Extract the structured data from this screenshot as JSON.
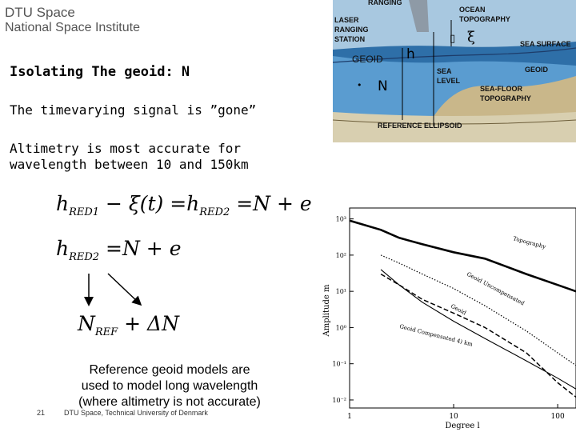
{
  "logo": {
    "line1": "DTU Space",
    "line2": "National Space Institute"
  },
  "slide": {
    "heading": "Isolating The geoid: N",
    "line_gone": "The timevarying signal is ”gone”",
    "line_altimetry_1": "Altimetry is most accurate for",
    "line_altimetry_2": "wavelength between 10 and 150km",
    "eq1": {
      "h1": "h",
      "sub1": "RED1",
      "minus_xi": " − ξ(t) =",
      "h2": "h",
      "sub2": "RED2",
      "rhs": " =N + e"
    },
    "eq2": {
      "h": "h",
      "sub": "RED2",
      "rhs": " =N + e"
    },
    "eq3": {
      "n": "N",
      "sub": "REF",
      "rhs": " + ΔN"
    },
    "reference_text": [
      "Reference geoid models are",
      "used to model long wavelength",
      "(where altimetry is not accurate)"
    ]
  },
  "footer": {
    "page_number": "21",
    "institution": "DTU Space, Technical University of Denmark"
  },
  "diagram": {
    "labels": {
      "ranging": "RANGING",
      "laser": "LASER",
      "ranging2": "RANGING",
      "station": "STATION",
      "ocean": "OCEAN",
      "topography": "TOPOGRAPHY",
      "sea_surface": "SEA SURFACE",
      "geoid_right": "GEOID",
      "geoid_left": "GEOID",
      "h": "h",
      "xi": "ξ",
      "box_char": "▯",
      "dot": "•",
      "n": "N",
      "sea": "SEA",
      "level": "LEVEL",
      "sea_floor": "SEA-FLOOR",
      "topography2": "TOPOGRAPHY",
      "reference_ellipsoid": "REFERENCE ELLIPSOID"
    },
    "colors": {
      "sky": "#a8c8e0",
      "ocean": "#2e6fa8",
      "water": "#5a9cd0",
      "land": "#c9b78a",
      "ellipsoid": "#d8cfb0"
    }
  },
  "chart_data": {
    "type": "line",
    "xscale": "log",
    "yscale": "log",
    "xlabel": "Degree l",
    "ylabel": "Amplitude m",
    "xlim": [
      1,
      150
    ],
    "ylim": [
      0.006,
      2000
    ],
    "x_ticks": [
      "1",
      "10",
      "100"
    ],
    "y_ticks": [
      "10³",
      "10²",
      "10¹",
      "10⁰",
      "10⁻¹",
      "10⁻²"
    ],
    "series": [
      {
        "name": "Topography",
        "style": "thick",
        "x": [
          1,
          2,
          3,
          5,
          10,
          20,
          50,
          100,
          150
        ],
        "y": [
          900,
          500,
          300,
          200,
          120,
          80,
          30,
          15,
          10
        ]
      },
      {
        "name": "Geoid Uncompensated",
        "style": "dotted",
        "x": [
          2,
          3,
          5,
          10,
          20,
          50,
          100,
          150
        ],
        "y": [
          100,
          60,
          30,
          12,
          4,
          0.8,
          0.2,
          0.09
        ]
      },
      {
        "name": "Geoid",
        "style": "dashed",
        "x": [
          2,
          3,
          5,
          10,
          20,
          50,
          100,
          150
        ],
        "y": [
          30,
          15,
          6,
          2.5,
          1,
          0.2,
          0.03,
          0.012
        ]
      },
      {
        "name": "Geoid Compensated 4) km",
        "style": "solid",
        "x": [
          2,
          3,
          5,
          10,
          20,
          50,
          100,
          150
        ],
        "y": [
          40,
          15,
          5,
          1.5,
          0.5,
          0.12,
          0.04,
          0.02
        ]
      }
    ],
    "curve_labels": [
      "Topography",
      "Geoid Uncompensated",
      "Geoid",
      "Geoid Compensated 4) km"
    ]
  }
}
